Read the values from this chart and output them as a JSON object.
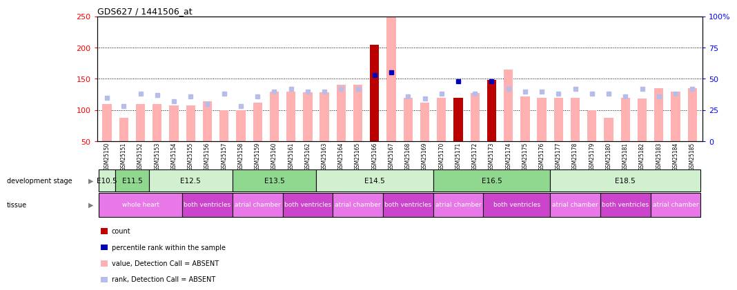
{
  "title": "GDS627 / 1441506_at",
  "samples": [
    "GSM25150",
    "GSM25151",
    "GSM25152",
    "GSM25153",
    "GSM25154",
    "GSM25155",
    "GSM25156",
    "GSM25157",
    "GSM25158",
    "GSM25159",
    "GSM25160",
    "GSM25161",
    "GSM25162",
    "GSM25163",
    "GSM25164",
    "GSM25165",
    "GSM25166",
    "GSM25167",
    "GSM25168",
    "GSM25169",
    "GSM25170",
    "GSM25171",
    "GSM25172",
    "GSM25173",
    "GSM25174",
    "GSM25175",
    "GSM25176",
    "GSM25177",
    "GSM25178",
    "GSM25179",
    "GSM25180",
    "GSM25181",
    "GSM25182",
    "GSM25183",
    "GSM25184",
    "GSM25185"
  ],
  "bar_values": [
    110,
    88,
    110,
    110,
    108,
    108,
    114,
    100,
    100,
    112,
    130,
    130,
    128,
    128,
    140,
    140,
    204,
    250,
    120,
    112,
    120,
    120,
    127,
    148,
    165,
    122,
    120,
    120,
    120,
    100,
    88,
    120,
    118,
    135,
    130,
    135
  ],
  "bar_is_present": [
    false,
    false,
    false,
    false,
    false,
    false,
    false,
    false,
    false,
    false,
    false,
    false,
    false,
    false,
    false,
    false,
    true,
    false,
    false,
    false,
    false,
    true,
    false,
    true,
    false,
    false,
    false,
    false,
    false,
    false,
    false,
    false,
    false,
    false,
    false,
    false
  ],
  "rank_values_pct": [
    35,
    28,
    38,
    37,
    32,
    36,
    30,
    38,
    28,
    36,
    40,
    42,
    40,
    40,
    42,
    42,
    53,
    55,
    36,
    34,
    38,
    48,
    38,
    48,
    42,
    40,
    40,
    38,
    42,
    38,
    38,
    36,
    42,
    36,
    38,
    42
  ],
  "rank_is_present": [
    false,
    false,
    false,
    false,
    false,
    false,
    false,
    false,
    false,
    false,
    false,
    false,
    false,
    false,
    false,
    false,
    true,
    true,
    false,
    false,
    false,
    true,
    false,
    true,
    false,
    false,
    false,
    false,
    false,
    false,
    false,
    false,
    false,
    false,
    false,
    false
  ],
  "dev_stages": [
    {
      "label": "E10.5",
      "start": 0,
      "end": 1,
      "color": "#d0f0d0"
    },
    {
      "label": "E11.5",
      "start": 1,
      "end": 3,
      "color": "#90d890"
    },
    {
      "label": "E12.5",
      "start": 3,
      "end": 8,
      "color": "#d0f0d0"
    },
    {
      "label": "E13.5",
      "start": 8,
      "end": 13,
      "color": "#90d890"
    },
    {
      "label": "E14.5",
      "start": 13,
      "end": 20,
      "color": "#d0f0d0"
    },
    {
      "label": "E16.5",
      "start": 20,
      "end": 27,
      "color": "#90d890"
    },
    {
      "label": "E18.5",
      "start": 27,
      "end": 36,
      "color": "#d0f0d0"
    }
  ],
  "tissues": [
    {
      "label": "whole heart",
      "start": 0,
      "end": 5,
      "color": "#e878e8"
    },
    {
      "label": "both ventricles",
      "start": 5,
      "end": 8,
      "color": "#cc44cc"
    },
    {
      "label": "atrial chamber",
      "start": 8,
      "end": 11,
      "color": "#e878e8"
    },
    {
      "label": "both ventricles",
      "start": 11,
      "end": 14,
      "color": "#cc44cc"
    },
    {
      "label": "atrial chamber",
      "start": 14,
      "end": 17,
      "color": "#e878e8"
    },
    {
      "label": "both ventricles",
      "start": 17,
      "end": 20,
      "color": "#cc44cc"
    },
    {
      "label": "atrial chamber",
      "start": 20,
      "end": 23,
      "color": "#e878e8"
    },
    {
      "label": "both ventricles",
      "start": 23,
      "end": 27,
      "color": "#cc44cc"
    },
    {
      "label": "atrial chamber",
      "start": 27,
      "end": 30,
      "color": "#e878e8"
    },
    {
      "label": "both ventricles",
      "start": 30,
      "end": 33,
      "color": "#cc44cc"
    },
    {
      "label": "atrial chamber",
      "start": 33,
      "end": 36,
      "color": "#e878e8"
    }
  ],
  "ylim_left": [
    50,
    250
  ],
  "yticks_left": [
    50,
    100,
    150,
    200,
    250
  ],
  "ylim_right": [
    0,
    100
  ],
  "yticks_right": [
    0,
    25,
    50,
    75,
    100
  ],
  "bar_color_absent": "#ffb0b0",
  "bar_color_present": "#bb0000",
  "rank_color_absent": "#b8bce8",
  "rank_color_present": "#0000bb",
  "xlabel_bg": "#d0d0d0",
  "legend_items": [
    {
      "color": "#bb0000",
      "label": "count"
    },
    {
      "color": "#0000bb",
      "label": "percentile rank within the sample"
    },
    {
      "color": "#ffb0b0",
      "label": "value, Detection Call = ABSENT"
    },
    {
      "color": "#b8bce8",
      "label": "rank, Detection Call = ABSENT"
    }
  ]
}
